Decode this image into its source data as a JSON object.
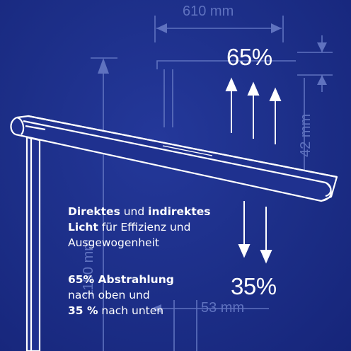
{
  "dimensions": {
    "width_label": "610 mm",
    "height_right_label": "42 mm",
    "height_left_label": "1180 mm",
    "depth_label": "53 mm"
  },
  "light_split": {
    "up_percent": "65%",
    "down_percent": "35%",
    "up_arrow_count": 3,
    "down_arrow_count": 2
  },
  "description": {
    "line1_bold1": "Direktes",
    "line1_text1": " und ",
    "line1_bold2": "indirektes",
    "line2_bold": "Licht",
    "line2_text": " für Effizienz und",
    "line3_text": "Ausgewogenheit",
    "line4_bold": "65% Abstrahlung",
    "line5_text": "nach oben und",
    "line6_bold": "35 %",
    "line6_text": " nach unten"
  },
  "colors": {
    "background": "#1c2e87",
    "line_art": "#ffffff",
    "dimension_lines": "#5f72bf"
  }
}
